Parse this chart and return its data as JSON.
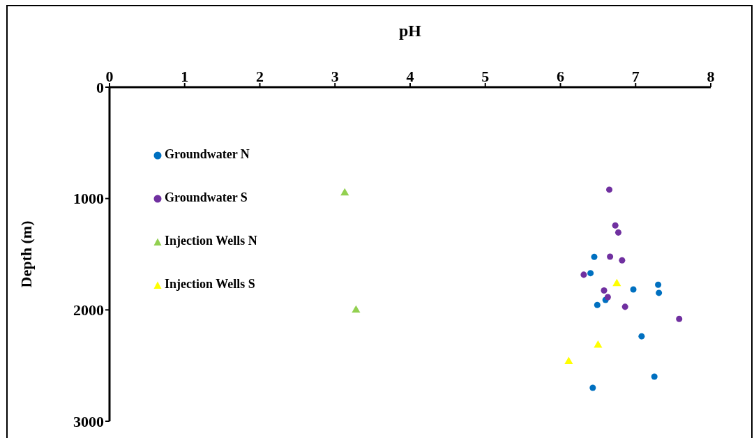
{
  "chart_data": {
    "type": "scatter",
    "xlabel": "pH",
    "ylabel": "Depth (m)",
    "xlim": [
      0,
      8
    ],
    "xticks": [
      0,
      1,
      2,
      3,
      4,
      5,
      6,
      7,
      8
    ],
    "ylim": [
      3000,
      0
    ],
    "yticks": [
      0,
      1000,
      2000,
      3000
    ],
    "grid": false,
    "legend": "top left",
    "series": [
      {
        "name": "Groundwater N",
        "color": "#0070c0",
        "marker": "circle",
        "x": [
          6.45,
          6.4,
          6.97,
          7.3,
          7.31,
          6.6,
          6.49,
          7.08,
          7.25,
          6.43
        ],
        "values": [
          1524,
          1670,
          1816,
          1774,
          1847,
          1910,
          1956,
          2237,
          2599,
          2699
        ]
      },
      {
        "name": "Groundwater S",
        "color": "#7030a0",
        "marker": "circle",
        "x": [
          6.65,
          6.73,
          6.77,
          6.66,
          6.82,
          6.31,
          6.58,
          6.63,
          6.86,
          7.58
        ],
        "values": [
          920,
          1242,
          1305,
          1522,
          1555,
          1684,
          1826,
          1885,
          1972,
          2081
        ]
      },
      {
        "name": "Injection Wells N",
        "color": "#92d050",
        "marker": "triangle",
        "x": [
          3.13,
          3.28
        ],
        "values": [
          950,
          2002
        ]
      },
      {
        "name": "Injection Wells S",
        "color": "#ffff00",
        "marker": "triangle",
        "x": [
          6.75,
          6.5,
          6.11
        ],
        "values": [
          1764,
          2317,
          2465
        ]
      }
    ]
  }
}
